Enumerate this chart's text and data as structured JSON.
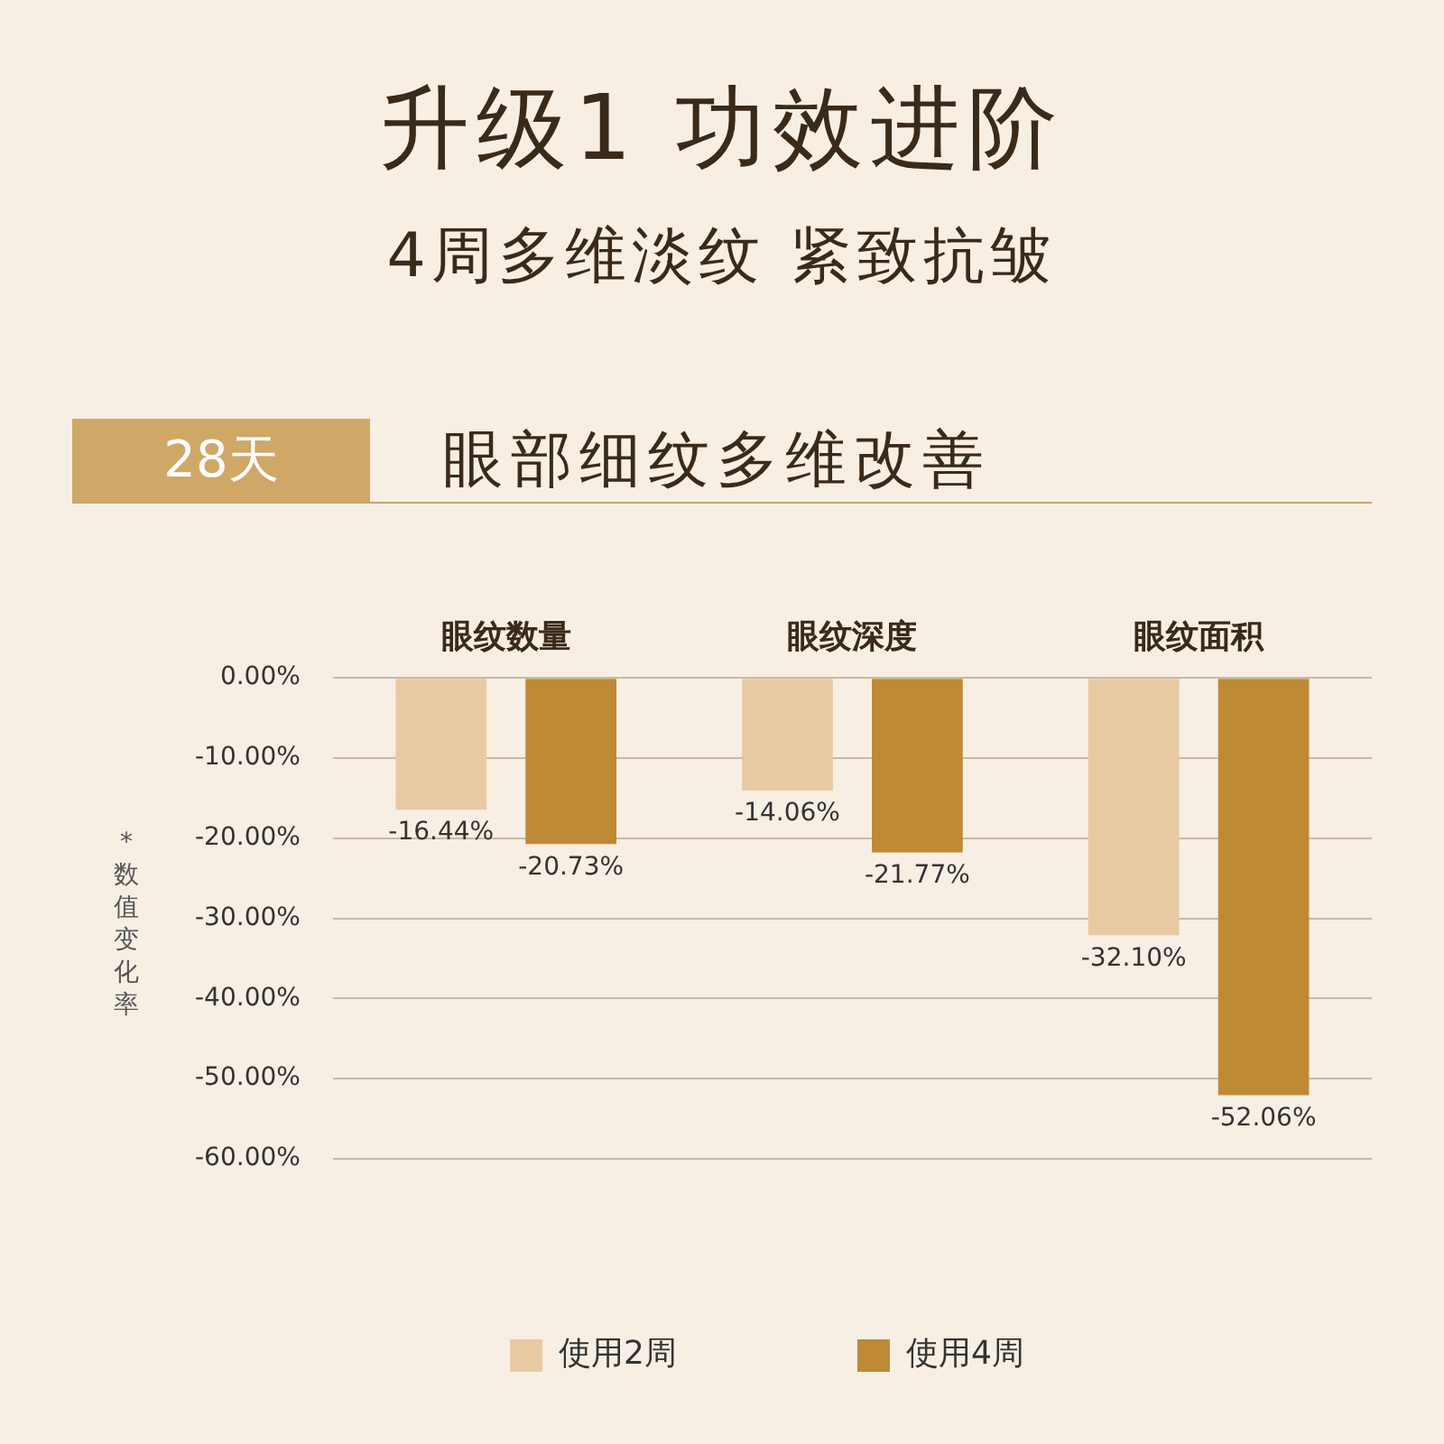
{
  "chart_data": {
    "type": "bar",
    "title": "升级1  功效进阶",
    "subtitle": "4周多维淡纹  紧致抗皱",
    "annotations": [
      "28天",
      "眼部细纹多维改善"
    ],
    "ylabel": "*数值变化率",
    "categories": [
      "眼纹数量",
      "眼纹深度",
      "眼纹面积"
    ],
    "series": [
      {
        "name": "使用2周",
        "color": "#e8caa2",
        "values": [
          -16.44,
          -14.06,
          -32.1
        ],
        "value_labels": [
          "-16.44%",
          "-14.06%",
          "-32.10%"
        ]
      },
      {
        "name": "使用4周",
        "color": "#bf8a35",
        "values": [
          -20.73,
          -21.77,
          -52.06
        ],
        "value_labels": [
          "-20.73%",
          "-21.77%",
          "-52.06%"
        ]
      }
    ],
    "ylim": [
      -60,
      0
    ],
    "yticks": [
      {
        "value": 0,
        "label": "0.00%"
      },
      {
        "value": -10,
        "label": "-10.00%"
      },
      {
        "value": -20,
        "label": "-20.00%"
      },
      {
        "value": -30,
        "label": "-30.00%"
      },
      {
        "value": -40,
        "label": "-40.00%"
      },
      {
        "value": -50,
        "label": "-50.00%"
      },
      {
        "value": -60,
        "label": "-60.00%"
      }
    ],
    "grid": "y",
    "legend": "bottom"
  }
}
